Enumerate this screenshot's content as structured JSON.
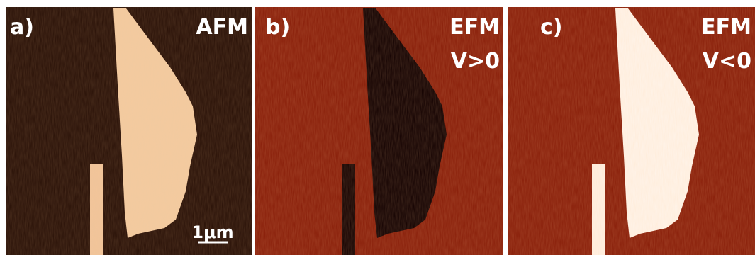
{
  "panels": [
    {
      "label": "a)",
      "lines": [
        "AFM"
      ],
      "scale_bar": "1μm"
    },
    {
      "label": "b)",
      "lines": [
        "EFM",
        "V>0"
      ]
    },
    {
      "label": "c)",
      "lines": [
        "EFM",
        "V<0"
      ]
    }
  ]
}
